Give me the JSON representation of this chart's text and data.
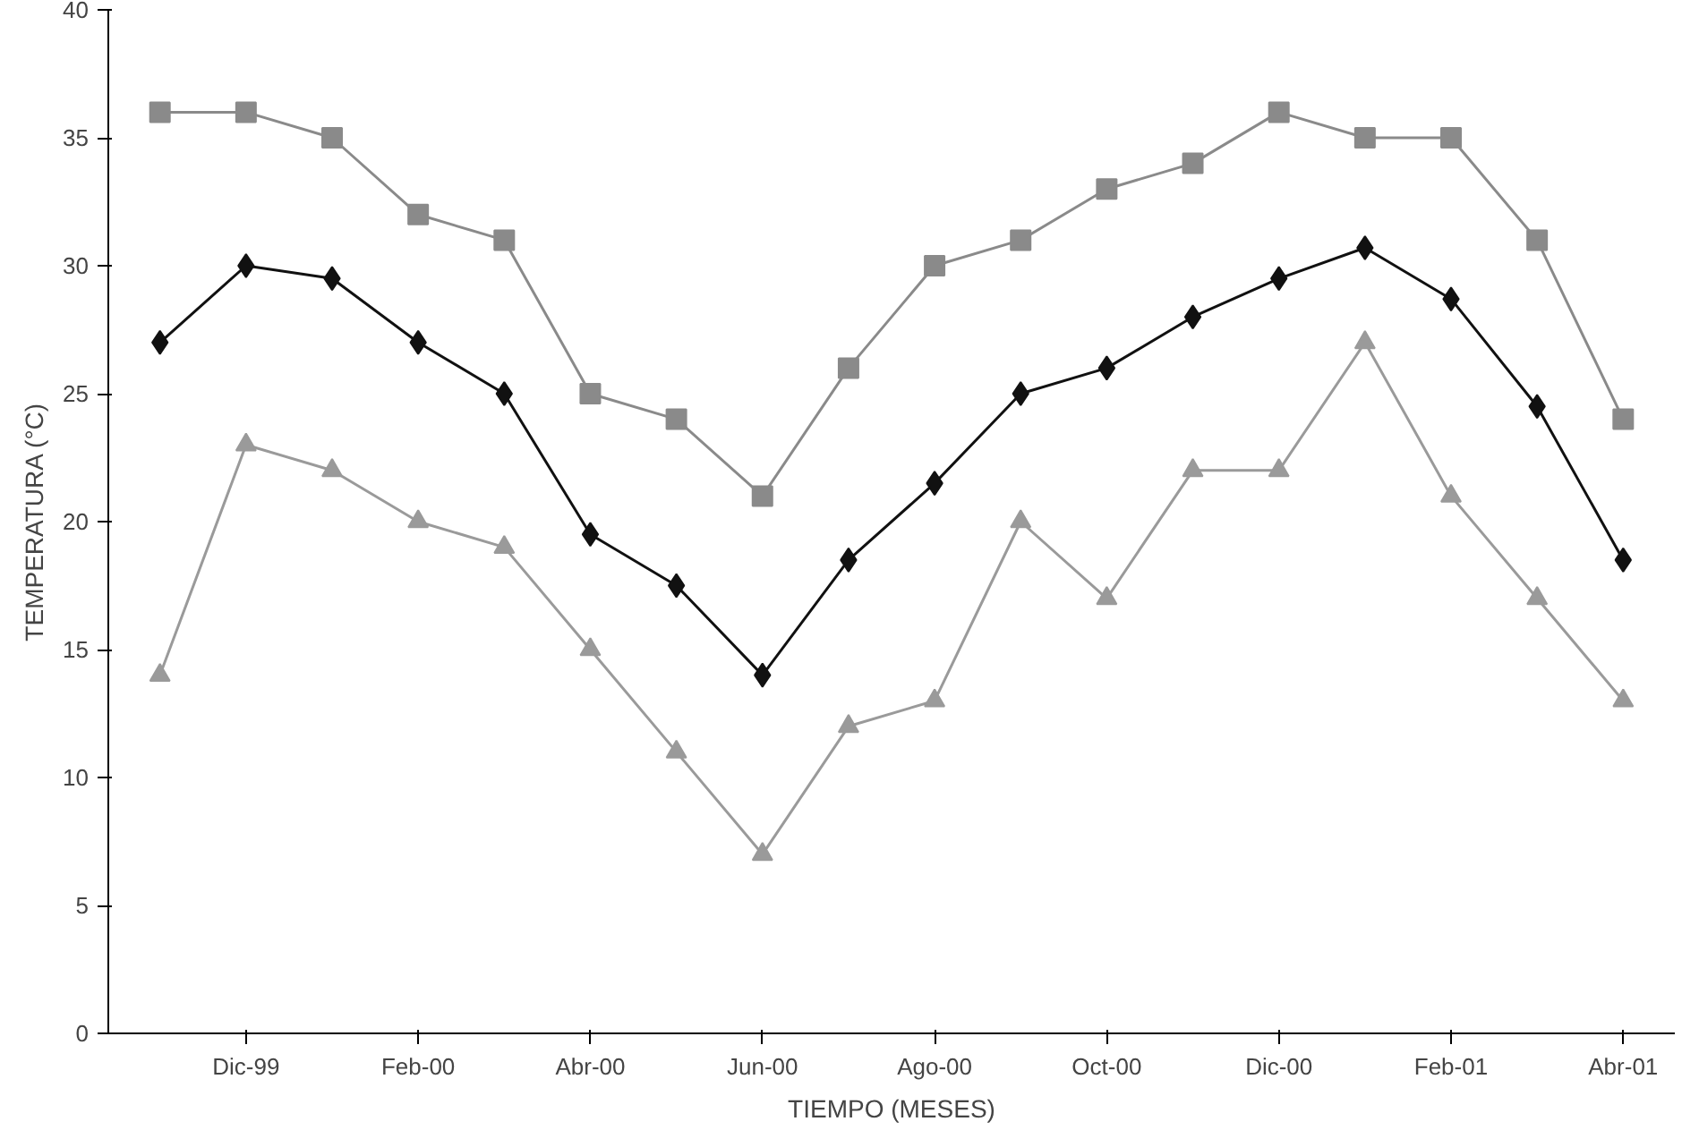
{
  "chart_data": {
    "type": "line",
    "xlabel": "TIEMPO (MESES)",
    "ylabel": "TEMPERATURA (°C)",
    "categories": [
      null,
      "Dic-99",
      null,
      "Feb-00",
      null,
      "Abr-00",
      null,
      "Jun-00",
      null,
      "Ago-00",
      null,
      "Oct-00",
      null,
      "Dic-00",
      null,
      "Feb-01",
      null,
      "Abr-01"
    ],
    "series": [
      {
        "color": "#8a8a8a",
        "marker": "square",
        "values": [
          36,
          36,
          35,
          32,
          31,
          25,
          24,
          21,
          26,
          30,
          31,
          33,
          34,
          36,
          35,
          35,
          31,
          24
        ]
      },
      {
        "color": "#111111",
        "marker": "diamond",
        "values": [
          27,
          30,
          29.5,
          27,
          25,
          19.5,
          17.5,
          14,
          18.5,
          21.5,
          25,
          26,
          28,
          29.5,
          30.7,
          28.7,
          24.5,
          18.5
        ]
      },
      {
        "color": "#9a9a9a",
        "marker": "triangle",
        "values": [
          14,
          23,
          22,
          20,
          19,
          15,
          11,
          7,
          12,
          13,
          20,
          17,
          22,
          22,
          27,
          21,
          17,
          13
        ]
      }
    ],
    "ylim": [
      0,
      40
    ],
    "yticks": [
      0,
      5,
      10,
      15,
      20,
      25,
      30,
      35,
      40
    ],
    "grid": false,
    "line_style": "solid"
  }
}
